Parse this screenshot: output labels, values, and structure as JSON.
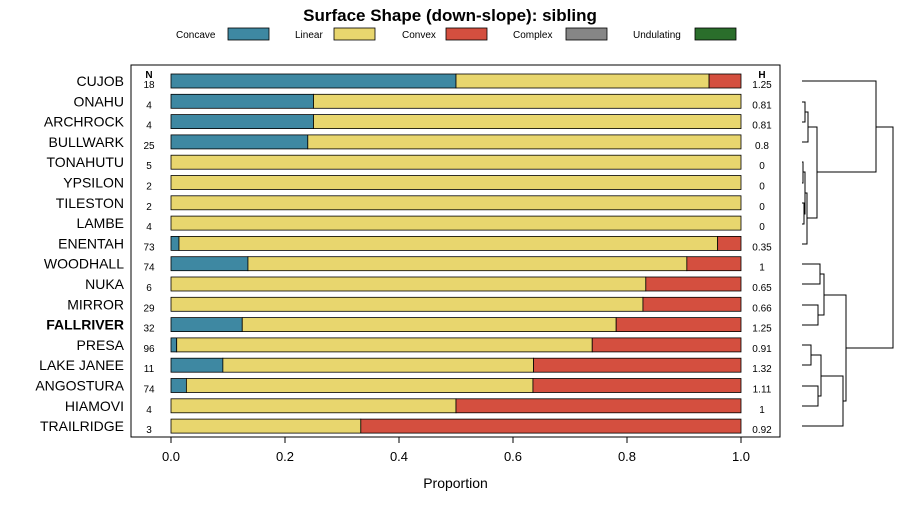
{
  "chart_data": {
    "type": "bar",
    "orientation": "horizontal",
    "stacked": true,
    "title": "Surface Shape (down-slope): sibling",
    "xlabel": "Proportion",
    "xlim": [
      0,
      1
    ],
    "xticks": [
      "0.0",
      "0.2",
      "0.4",
      "0.6",
      "0.8",
      "1.0"
    ],
    "n_header": "N",
    "h_header": "H",
    "legend_position": "top",
    "highlighted": "FALLRIVER",
    "legend": [
      {
        "name": "Concave",
        "color": "#3e88a2"
      },
      {
        "name": "Linear",
        "color": "#e8d66e"
      },
      {
        "name": "Convex",
        "color": "#d44f3f"
      },
      {
        "name": "Complex",
        "color": "#868686"
      },
      {
        "name": "Undulating",
        "color": "#2a6e2b"
      }
    ],
    "categories": [
      "CUJOB",
      "ONAHU",
      "ARCHROCK",
      "BULLWARK",
      "TONAHUTU",
      "YPSILON",
      "TILESTON",
      "LAMBE",
      "ENENTAH",
      "WOODHALL",
      "NUKA",
      "MIRROR",
      "FALLRIVER",
      "PRESA",
      "LAKE JANEE",
      "ANGOSTURA",
      "HIAMOVI",
      "TRAILRIDGE"
    ],
    "n": [
      "18",
      "4",
      "4",
      "25",
      "5",
      "2",
      "2",
      "4",
      "73",
      "74",
      "6",
      "29",
      "32",
      "96",
      "11",
      "74",
      "4",
      "3"
    ],
    "h": [
      "1.25",
      "0.81",
      "0.81",
      "0.8",
      "0",
      "0",
      "0",
      "0",
      "0.35",
      "1",
      "0.65",
      "0.66",
      "1.25",
      "0.91",
      "1.32",
      "1.11",
      "1",
      "0.92"
    ],
    "series": [
      {
        "name": "Concave",
        "values": [
          0.5,
          0.25,
          0.25,
          0.24,
          0,
          0,
          0,
          0,
          0.014,
          0.135,
          0,
          0,
          0.125,
          0.01,
          0.091,
          0.027,
          0,
          0
        ]
      },
      {
        "name": "Linear",
        "values": [
          0.444,
          0.75,
          0.75,
          0.76,
          1,
          1,
          1,
          1,
          0.945,
          0.77,
          0.833,
          0.828,
          0.656,
          0.729,
          0.545,
          0.608,
          0.5,
          0.333
        ]
      },
      {
        "name": "Convex",
        "values": [
          0.056,
          0,
          0,
          0,
          0,
          0,
          0,
          0,
          0.041,
          0.095,
          0.167,
          0.172,
          0.219,
          0.261,
          0.364,
          0.365,
          0.5,
          0.667
        ]
      },
      {
        "name": "Complex",
        "values": [
          0,
          0,
          0,
          0,
          0,
          0,
          0,
          0,
          0,
          0,
          0,
          0,
          0,
          0,
          0,
          0,
          0,
          0
        ]
      },
      {
        "name": "Undulating",
        "values": [
          0,
          0,
          0,
          0,
          0,
          0,
          0,
          0,
          0,
          0,
          0,
          0,
          0,
          0,
          0,
          0,
          0,
          0
        ]
      }
    ]
  }
}
